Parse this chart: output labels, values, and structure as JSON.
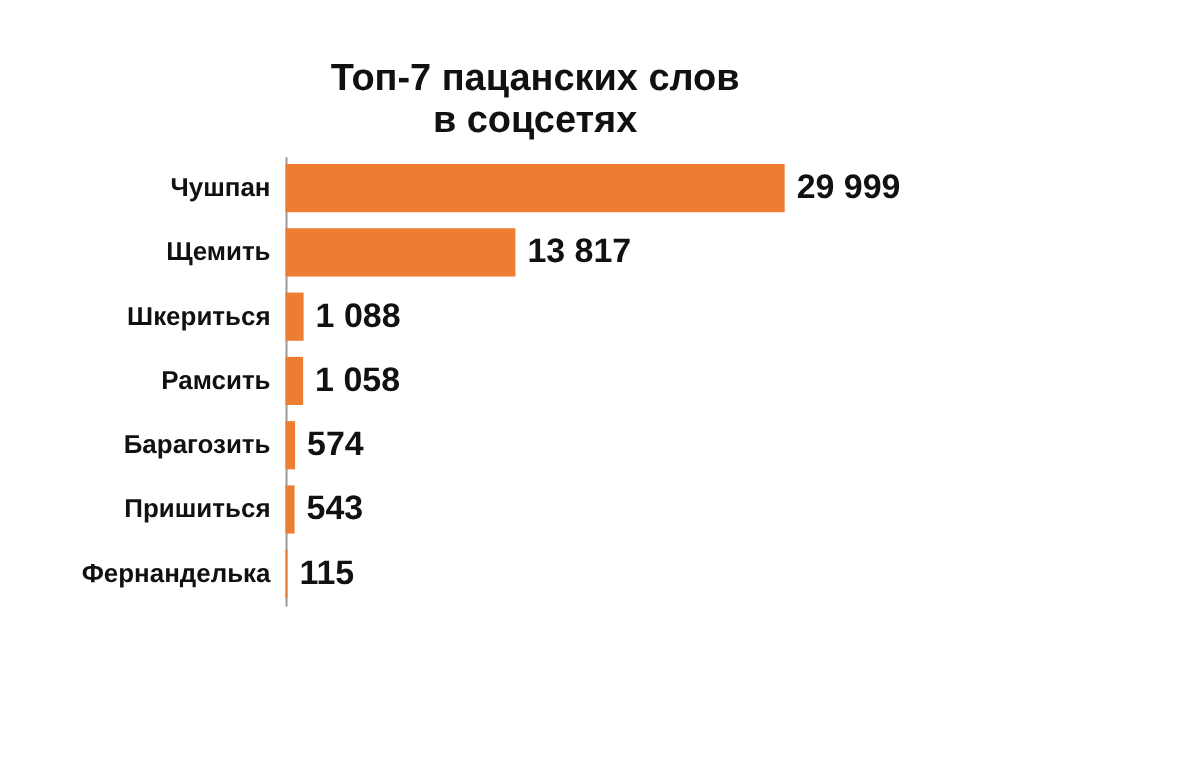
{
  "chart_data": {
    "type": "bar",
    "orientation": "horizontal",
    "title": "Топ-7 пацанских слов\nв соцсетях",
    "categories": [
      "Чушпан",
      "Щемить",
      "Шкериться",
      "Рамсить",
      "Барагозить",
      "Пришиться",
      "Фернанделька"
    ],
    "values": [
      29999,
      13817,
      1088,
      1058,
      574,
      543,
      115
    ],
    "value_labels": [
      "29 999",
      "13 817",
      "1 088",
      "1 058",
      "574",
      "543",
      "115"
    ],
    "color": "#ed7d31"
  }
}
